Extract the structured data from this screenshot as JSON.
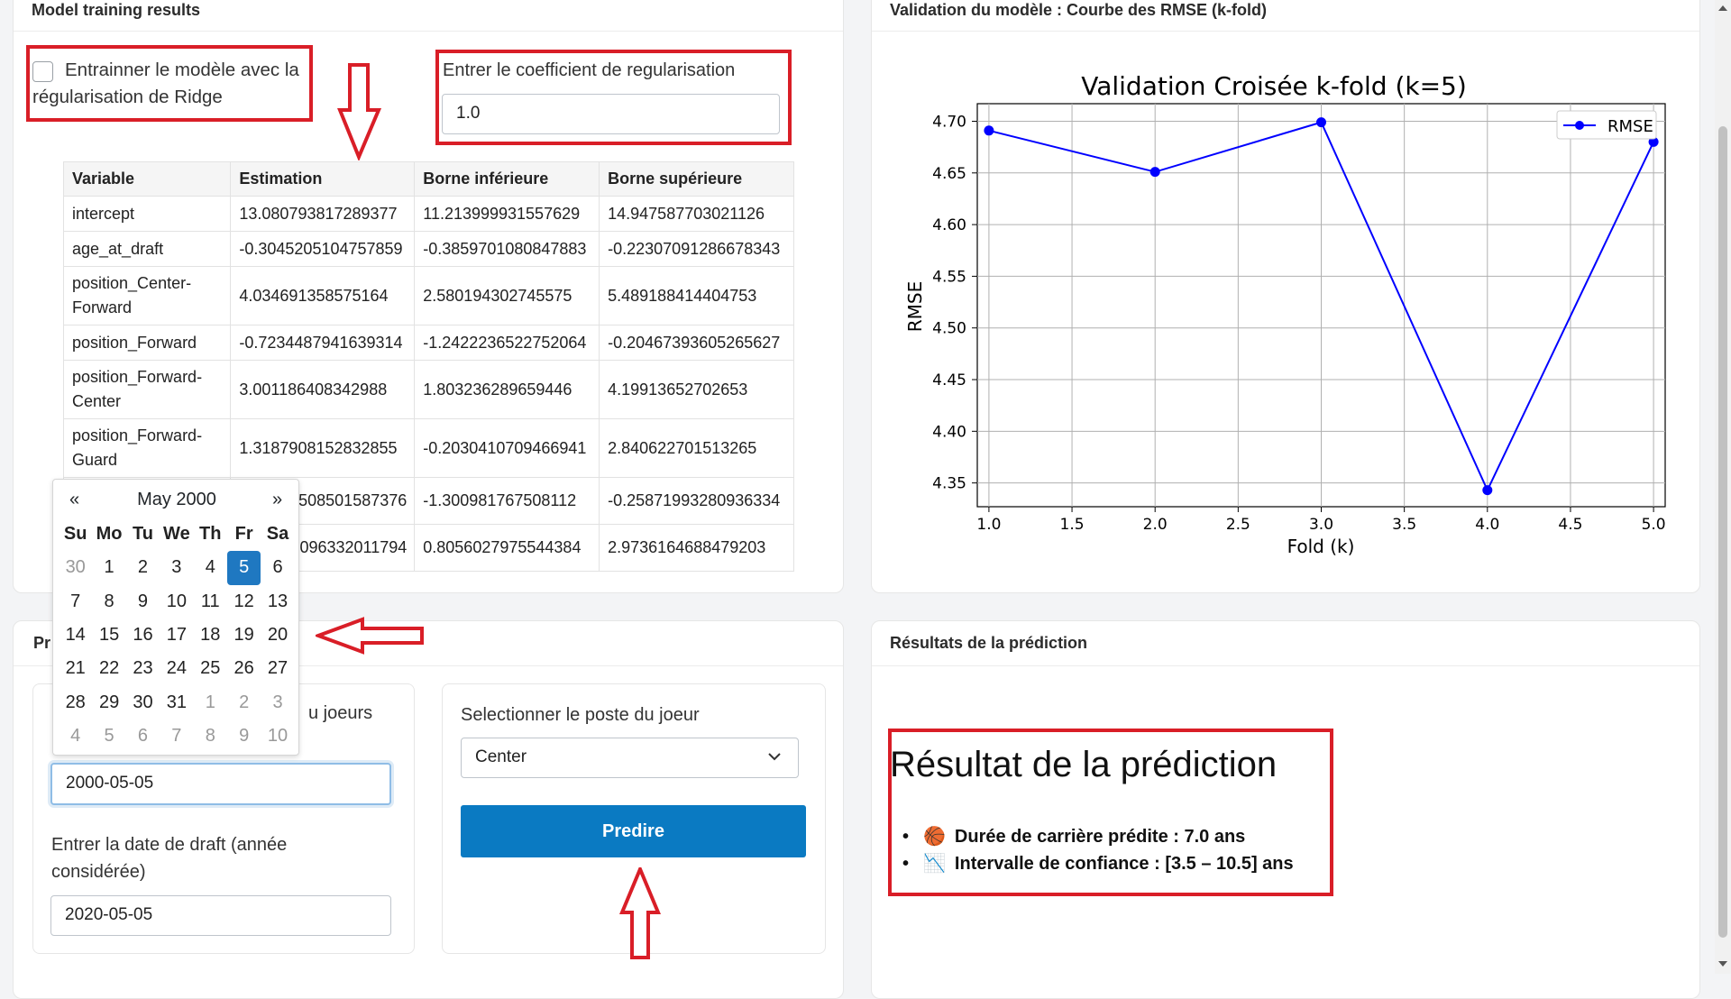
{
  "training_card": {
    "title": "Model training results",
    "ridge_checkbox_label": "Entrainner le modèle avec la régularisation de Ridge",
    "ridge_checked": false,
    "coef_label": "Entrer le coefficient de regularisation",
    "coef_value": "1.0",
    "table": {
      "headers": [
        "Variable",
        "Estimation",
        "Borne inférieure",
        "Borne supérieure"
      ],
      "rows": [
        [
          "intercept",
          "13.080793817289377",
          "11.213999931557629",
          "14.947587703021126"
        ],
        [
          "age_at_draft",
          "-0.3045205104757859",
          "-0.3859701080847883",
          "-0.22307091286678343"
        ],
        [
          "position_Center-Forward",
          "4.034691358575164",
          "2.580194302745575",
          "5.489188414404753"
        ],
        [
          "position_Forward",
          "-0.7234487941639314",
          "-1.2422236522752064",
          "-0.20467393605265627"
        ],
        [
          "position_Forward-Center",
          "3.001186408342988",
          "1.803236289659446",
          "4.19913652702653"
        ],
        [
          "position_Forward-Guard",
          "1.3187908152832855",
          "-0.2030410709466941",
          "2.840622701513265"
        ],
        [
          "",
          "508501587376",
          "-1.300981767508112",
          "-0.25871993280936334"
        ],
        [
          "",
          "096332011794",
          "0.8056027975544384",
          "2.9736164688479203"
        ]
      ]
    }
  },
  "calendar": {
    "prev": "«",
    "next": "»",
    "month_label": "May 2000",
    "dow": [
      "Su",
      "Mo",
      "Tu",
      "We",
      "Th",
      "Fr",
      "Sa"
    ],
    "weeks": [
      [
        "30",
        "1",
        "2",
        "3",
        "4",
        "5",
        "6"
      ],
      [
        "7",
        "8",
        "9",
        "10",
        "11",
        "12",
        "13"
      ],
      [
        "14",
        "15",
        "16",
        "17",
        "18",
        "19",
        "20"
      ],
      [
        "21",
        "22",
        "23",
        "24",
        "25",
        "26",
        "27"
      ],
      [
        "28",
        "29",
        "30",
        "31",
        "1",
        "2",
        "3"
      ],
      [
        "4",
        "5",
        "6",
        "7",
        "8",
        "9",
        "10"
      ]
    ],
    "selected_day": "5"
  },
  "prediction_card": {
    "title_partial": "Pr",
    "birth_label_partial": "u joeurs",
    "birth_value": "2000-05-05",
    "draft_label": "Entrer la date de draft (année considérée)",
    "draft_value": "2020-05-05",
    "position_label": "Selectionner le poste du joeur",
    "position_value": "Center",
    "predict_button": "Predire"
  },
  "validation_card": {
    "title": "Validation du modèle : Courbe des RMSE (k-fold)"
  },
  "results_card": {
    "title": "Résultats de la prédiction",
    "heading": "Résultat de la prédiction",
    "items": [
      {
        "icon": "🏀",
        "text": "Durée de carrière prédite : 7.0 ans"
      },
      {
        "icon": "📉",
        "text": "Intervalle de confiance : [3.5 – 10.5] ans"
      }
    ]
  },
  "chart_data": {
    "type": "line",
    "title": "Validation Croisée k-fold (k=5)",
    "xlabel": "Fold (k)",
    "ylabel": "RMSE",
    "x": [
      1,
      2,
      3,
      4,
      5
    ],
    "series": [
      {
        "name": "RMSE",
        "values": [
          4.691,
          4.651,
          4.699,
          4.343,
          4.68
        ],
        "color": "#0000ff"
      }
    ],
    "xlim": [
      0.93,
      5.07
    ],
    "ylim": [
      4.327,
      4.717
    ],
    "xticks": [
      "1.0",
      "1.5",
      "2.0",
      "2.5",
      "3.0",
      "3.5",
      "4.0",
      "4.5",
      "5.0"
    ],
    "yticks": [
      "4.35",
      "4.40",
      "4.45",
      "4.50",
      "4.55",
      "4.60",
      "4.65",
      "4.70"
    ],
    "grid": true,
    "legend": "top-right"
  },
  "colors": {
    "accent": "#0a7ac2",
    "annotation_red": "#d91e27",
    "series_blue": "#0000ff"
  }
}
